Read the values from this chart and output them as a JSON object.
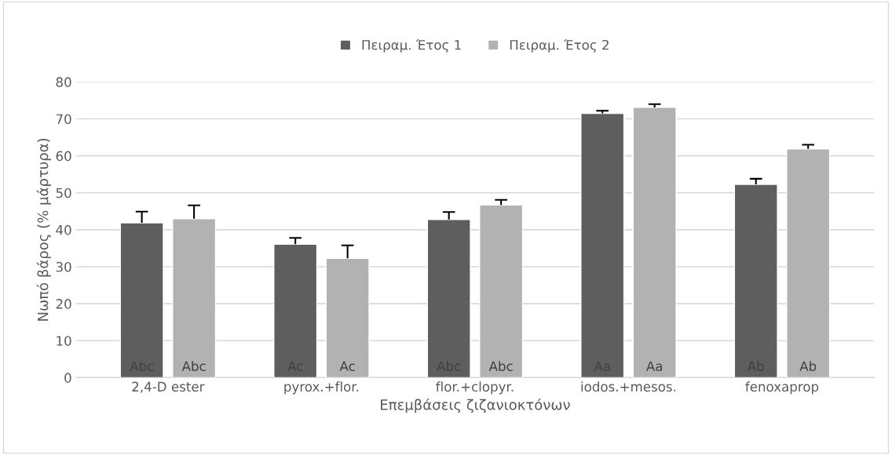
{
  "chart_data": {
    "type": "bar",
    "xlabel": "Επεμβάσεις ζιζανιοκτόνων",
    "ylabel": "Νωπό βάρος (% μάρτυρα)",
    "categories": [
      "2,4-D ester",
      "pyrox.+flor.",
      "flor.+clopyr.",
      "iodos.+mesos.",
      "fenoxaprop"
    ],
    "series": [
      {
        "name": "Πειραμ. Έτος 1",
        "color": "#5e5e5e",
        "values": [
          41.9,
          36.1,
          42.8,
          71.5,
          52.3
        ],
        "errors": [
          [
            41.9,
            44.9
          ],
          [
            36.1,
            37.8
          ],
          [
            42.8,
            44.8
          ],
          [
            71.5,
            72.2
          ],
          [
            52.3,
            53.8
          ]
        ],
        "value_labels": [
          "Abc",
          "Ac",
          "Abc",
          "Aa",
          "Ab"
        ]
      },
      {
        "name": "Πειραμ. Έτος 2",
        "color": "#b2b2b2",
        "values": [
          43.0,
          32.3,
          46.7,
          73.1,
          61.9
        ],
        "errors": [
          [
            43.0,
            46.6
          ],
          [
            32.3,
            35.8
          ],
          [
            46.7,
            48.1
          ],
          [
            73.1,
            74.0
          ],
          [
            61.9,
            63.0
          ]
        ],
        "value_labels": [
          "Abc",
          "Ac",
          "Abc",
          "Aa",
          "Ab"
        ]
      }
    ],
    "ylim": [
      0,
      80
    ],
    "yticks": [
      0,
      10,
      20,
      30,
      40,
      50,
      60,
      70,
      80
    ],
    "grid": "y",
    "legend": "top"
  }
}
